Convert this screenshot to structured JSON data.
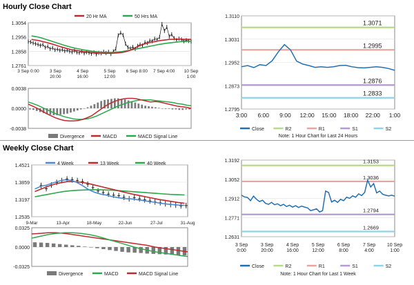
{
  "sections": {
    "hourly_title": "Hourly Close Chart",
    "weekly_title": "Weekly Close Chart"
  },
  "chart_data": [
    {
      "id": "hourly-price",
      "type": "line",
      "legend": [
        "20 Hr MA",
        "50 Hrs MA"
      ],
      "colors": {
        "price": "#111111",
        "ma20": "#c0282d",
        "ma50": "#2aa84a"
      },
      "yticks": [
        "1.3054",
        "1.2956",
        "1.2858",
        "1.2761"
      ],
      "yrange": [
        1.2761,
        1.3054
      ],
      "xticks": [
        [
          "3 Sep 0:00",
          ""
        ],
        [
          "3 Sep",
          "20:00"
        ],
        [
          "4 Sep",
          "16:00"
        ],
        [
          "5 Sep",
          "12:00"
        ],
        [
          "6 Sep 8:00",
          ""
        ],
        [
          "7 Sep 4:00",
          ""
        ],
        [
          "10 Sep",
          "1:00"
        ]
      ],
      "price": [
        1.2925,
        1.2922,
        1.2915,
        1.291,
        1.2905,
        1.2898,
        1.2905,
        1.2885,
        1.2892,
        1.2875,
        1.2882,
        1.2868,
        1.2873,
        1.2865,
        1.287,
        1.286,
        1.2866,
        1.2858,
        1.2853,
        1.2862,
        1.2852,
        1.2848,
        1.2858,
        1.2845,
        1.2853,
        1.2848,
        1.2842,
        1.2852,
        1.2838,
        1.2848,
        1.2845,
        1.2856,
        1.2847,
        1.2855,
        1.284,
        1.2858,
        1.2875,
        1.2968,
        1.2985,
        1.297,
        1.291,
        1.2885,
        1.2878,
        1.2888,
        1.2875,
        1.2895,
        1.2905,
        1.2898,
        1.292,
        1.2915,
        1.2932,
        1.2928,
        1.2945,
        1.2938,
        1.2955,
        1.3045,
        1.2998,
        1.3025,
        1.296,
        1.2975,
        1.2948,
        1.2935,
        1.2945,
        1.294,
        1.2928,
        1.2935,
        1.293,
        1.2925
      ],
      "ma20": [
        1.294,
        1.2936,
        1.2932,
        1.2926,
        1.292,
        1.2913,
        1.2906,
        1.2898,
        1.289,
        1.2883,
        1.2876,
        1.287,
        1.2866,
        1.2862,
        1.2859,
        1.2856,
        1.2853,
        1.285,
        1.2848,
        1.2846,
        1.2845,
        1.2845,
        1.2845,
        1.2846,
        1.2848,
        1.2851,
        1.2856,
        1.2864,
        1.2875,
        1.2888,
        1.29,
        1.2908,
        1.2915,
        1.292,
        1.2925,
        1.293,
        1.2934,
        1.2937,
        1.294,
        1.2941,
        1.2942,
        1.2942,
        1.2941,
        1.2941,
        1.294
      ],
      "ma50": [
        1.2964,
        1.296,
        1.2955,
        1.2948,
        1.294,
        1.2932,
        1.2924,
        1.2916,
        1.2908,
        1.29,
        1.2893,
        1.2886,
        1.288,
        1.2875,
        1.287,
        1.2866,
        1.2862,
        1.2858,
        1.2855,
        1.2853,
        1.2852,
        1.2851,
        1.2851,
        1.2852,
        1.2854,
        1.2857,
        1.2861,
        1.2865,
        1.287,
        1.2875,
        1.288,
        1.2885,
        1.289,
        1.2895,
        1.29,
        1.2905,
        1.2909,
        1.2913,
        1.2916,
        1.2919,
        1.2922,
        1.2924,
        1.2926,
        1.2927,
        1.2928
      ]
    },
    {
      "id": "hourly-macd",
      "type": "bar",
      "yticks": [
        "0.0038",
        "0.0000",
        "-0.0038"
      ],
      "yrange": [
        -0.0038,
        0.0038
      ],
      "legend": [
        "Divergence",
        "MACD",
        "MACD Signal Line"
      ],
      "colors": {
        "divergence": "#7a7a7a",
        "macd": "#c0282d",
        "signal": "#2aa84a"
      },
      "divergence": [
        -0.0002,
        -0.0003,
        -0.0005,
        -0.0007,
        -0.0009,
        -0.0011,
        -0.0012,
        -0.0013,
        -0.0013,
        -0.0012,
        -0.0011,
        -0.001,
        -0.0008,
        -0.0006,
        -0.0004,
        -0.0002,
        0.0,
        0.0002,
        0.0005,
        0.0008,
        0.0011,
        0.0014,
        0.0016,
        0.0017,
        0.0018,
        0.0019,
        0.0019,
        0.0018,
        0.0017,
        0.0015,
        0.0013,
        0.0011,
        0.0009,
        0.0007,
        0.0005,
        0.0004,
        0.0003,
        0.0002,
        0.0001,
        0.0,
        -0.0001,
        -0.0001,
        -0.0002,
        -0.0002,
        -0.0003,
        -0.0003,
        -0.0002,
        -0.0002
      ],
      "macd": [
        0.0008,
        0.0004,
        0.0,
        -0.0005,
        -0.001,
        -0.0014,
        -0.0018,
        -0.0021,
        -0.0023,
        -0.0024,
        -0.0024,
        -0.0023,
        -0.0021,
        -0.0018,
        -0.0014,
        -0.0008,
        -0.0002,
        0.0004,
        0.0009,
        0.0013,
        0.0016,
        0.0018,
        0.0019,
        0.0019,
        0.0018,
        0.0016,
        0.0014,
        0.0012,
        0.0013,
        0.0012,
        0.001,
        0.0008,
        0.0006,
        0.0004,
        0.0003,
        0.0002,
        0.0
      ],
      "signal": [
        0.0012,
        0.0009,
        0.0006,
        0.0002,
        -0.0002,
        -0.0006,
        -0.001,
        -0.0013,
        -0.0016,
        -0.0018,
        -0.002,
        -0.0021,
        -0.0021,
        -0.002,
        -0.0018,
        -0.0015,
        -0.0011,
        -0.0007,
        -0.0003,
        0.0001,
        0.0005,
        0.0008,
        0.0011,
        0.0013,
        0.0015,
        0.0016,
        0.0016,
        0.0016,
        0.0015,
        0.0014,
        0.0013,
        0.0012,
        0.0011,
        0.0009,
        0.0008,
        0.0006,
        0.0005
      ]
    },
    {
      "id": "hourly-pivot",
      "type": "line",
      "yticks": [
        "1.3110",
        "1.3031",
        "1.2952",
        "1.2873",
        "1.2795"
      ],
      "yrange": [
        1.2795,
        1.311
      ],
      "xticks": [
        "3:00",
        "6:00",
        "9:00",
        "12:00",
        "15:00",
        "18:00",
        "22:00",
        "1:00"
      ],
      "levels": [
        {
          "name": "R2",
          "value": 1.3071,
          "label": "1.3071",
          "color": "#b6d98a"
        },
        {
          "name": "R1",
          "value": 1.2995,
          "label": "1.2995",
          "color": "#e8a5a0"
        },
        {
          "name": "S1",
          "value": 1.2876,
          "label": "1.2876",
          "color": "#b39ad0"
        },
        {
          "name": "S2",
          "value": 1.2833,
          "label": "1.2833",
          "color": "#8fd3e8"
        }
      ],
      "close_color": "#1f6fb5",
      "close": [
        1.2938,
        1.2942,
        1.2935,
        1.2945,
        1.2942,
        1.2958,
        1.2988,
        1.3013,
        1.2995,
        1.2957,
        1.2947,
        1.2942,
        1.2936,
        1.2938,
        1.2936,
        1.2938,
        1.2942,
        1.2943,
        1.2938,
        1.2935,
        1.2934,
        1.2936,
        1.2938,
        1.2936,
        1.2932,
        1.2926
      ],
      "legend": [
        "Close",
        "R2",
        "R1",
        "S1",
        "S2"
      ],
      "note": "Note: 1 Hour Chart for Last 24 Hours"
    },
    {
      "id": "weekly-price",
      "type": "line",
      "legend": [
        "4 Week",
        "13 Week",
        "40 Week"
      ],
      "colors": {
        "price": "#111111",
        "w4": "#4a8bd0",
        "w13": "#c0282d",
        "w40": "#2aa84a"
      },
      "yticks": [
        "1.4521",
        "1.3859",
        "1.3197",
        "1.2535"
      ],
      "yrange": [
        1.2535,
        1.4521
      ],
      "xticks": [
        "9-Mar",
        "13-Apr",
        "18-May",
        "22-Jun",
        "27-Jul",
        "31-Aug"
      ],
      "price": [
        1.373,
        1.361,
        1.375,
        1.385,
        1.392,
        1.398,
        1.395,
        1.392,
        1.388,
        1.378,
        1.365,
        1.352,
        1.346,
        1.34,
        1.336,
        1.334,
        1.328,
        1.322,
        1.326,
        1.322,
        1.318,
        1.314,
        1.31,
        1.307,
        1.303,
        1.3,
        1.298,
        1.295,
        1.296
      ],
      "w4": [
        1.36,
        1.37,
        1.375,
        1.383,
        1.39,
        1.395,
        1.393,
        1.385,
        1.372,
        1.357,
        1.347,
        1.34,
        1.336,
        1.33,
        1.326,
        1.323,
        1.322,
        1.319,
        1.316,
        1.312,
        1.309,
        1.305,
        1.302,
        1.3,
        1.298,
        1.297
      ],
      "w13": [
        1.35,
        1.36,
        1.37,
        1.378,
        1.384,
        1.388,
        1.388,
        1.386,
        1.382,
        1.376,
        1.37,
        1.364,
        1.358,
        1.352,
        1.346,
        1.34,
        1.335,
        1.33,
        1.325,
        1.32,
        1.316,
        1.312,
        1.308,
        1.305
      ],
      "w40": [
        1.33,
        1.335,
        1.34,
        1.345,
        1.35,
        1.353,
        1.355,
        1.356,
        1.357,
        1.357,
        1.356,
        1.355,
        1.353,
        1.351,
        1.349,
        1.347,
        1.345,
        1.343,
        1.341,
        1.339,
        1.338,
        1.337
      ]
    },
    {
      "id": "weekly-macd",
      "type": "bar",
      "yticks": [
        "0.0325",
        "0.0000",
        "-0.0325"
      ],
      "yrange": [
        -0.0325,
        0.0325
      ],
      "legend": [
        "Divergence",
        "MACD",
        "MACD Signal Line"
      ],
      "colors": {
        "divergence": "#7a7a7a",
        "macd": "#2aa84a",
        "signal": "#c0282d"
      },
      "divergence": [
        0.008,
        0.0075,
        0.007,
        0.006,
        0.005,
        0.004,
        0.003,
        0.002,
        0.0008,
        -0.0005,
        -0.002,
        -0.0035,
        -0.005,
        -0.0065,
        -0.008,
        -0.009,
        -0.0095,
        -0.01,
        -0.011,
        -0.0115,
        -0.012,
        -0.0125,
        -0.013,
        -0.0135,
        -0.014
      ],
      "macd": [
        0.015,
        0.018,
        0.021,
        0.023,
        0.024,
        0.024,
        0.023,
        0.021,
        0.018,
        0.014,
        0.01,
        0.006,
        0.002,
        -0.002,
        -0.005,
        -0.008,
        -0.01,
        -0.012,
        -0.014,
        -0.016
      ],
      "signal": [
        0.022,
        0.023,
        0.024,
        0.024,
        0.023,
        0.021,
        0.019,
        0.017,
        0.015,
        0.013,
        0.011,
        0.009,
        0.007,
        0.005,
        0.003,
        0.0,
        -0.002,
        -0.004,
        -0.006,
        -0.008
      ]
    },
    {
      "id": "weekly-pivot",
      "type": "line",
      "yticks": [
        "1.3192",
        "1.3052",
        "1.2912",
        "1.2771",
        "1.2631"
      ],
      "yrange": [
        1.2631,
        1.3192
      ],
      "xticks": [
        [
          "3 Sep",
          "0:00"
        ],
        [
          "3 Sep",
          "20:00"
        ],
        [
          "4 Sep",
          "16:00"
        ],
        [
          "5 Sep",
          "12:00"
        ],
        [
          "6 Sep",
          "8:00"
        ],
        [
          "7 Sep",
          "4:00"
        ],
        [
          "10 Sep",
          "1:00"
        ]
      ],
      "levels": [
        {
          "name": "R2",
          "value": 1.3153,
          "label": "1.3153",
          "color": "#b6d98a"
        },
        {
          "name": "R1",
          "value": 1.3036,
          "label": "1.3036",
          "color": "#e8a5a0"
        },
        {
          "name": "S1",
          "value": 1.2794,
          "label": "1.2794",
          "color": "#b39ad0"
        },
        {
          "name": "S2",
          "value": 1.2669,
          "label": "1.2669",
          "color": "#8fd3e8"
        }
      ],
      "close_color": "#1f6fb5",
      "close": [
        1.2935,
        1.2922,
        1.2918,
        1.2895,
        1.2928,
        1.2905,
        1.2888,
        1.2898,
        1.2875,
        1.2868,
        1.2882,
        1.2865,
        1.2872,
        1.2858,
        1.2868,
        1.2852,
        1.2862,
        1.2848,
        1.2858,
        1.2845,
        1.2855,
        1.2848,
        1.2842,
        1.2822,
        1.2828,
        1.2835,
        1.2812,
        1.2822,
        1.2965,
        1.2955,
        1.2885,
        1.2898,
        1.2882,
        1.2905,
        1.2895,
        1.292,
        1.2912,
        1.293,
        1.292,
        1.2945,
        1.2932,
        1.2955,
        1.3045,
        1.2995,
        1.302,
        1.2952,
        1.2965,
        1.2942,
        1.2935,
        1.293,
        1.2935,
        1.2928
      ],
      "legend": [
        "Close",
        "R2",
        "R1",
        "S1",
        "S2"
      ],
      "note": "Note: 1 Hour Chart for Last 1 Week"
    }
  ]
}
